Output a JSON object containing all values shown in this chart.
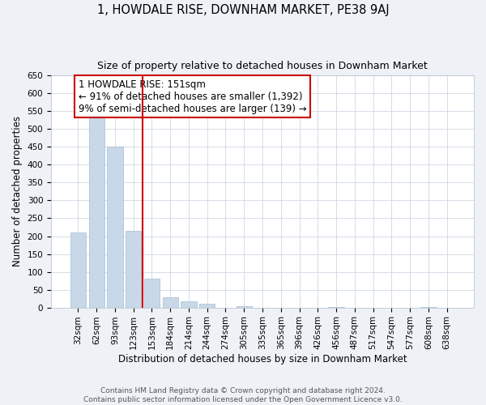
{
  "title": "1, HOWDALE RISE, DOWNHAM MARKET, PE38 9AJ",
  "subtitle": "Size of property relative to detached houses in Downham Market",
  "xlabel": "Distribution of detached houses by size in Downham Market",
  "ylabel": "Number of detached properties",
  "bar_labels": [
    "32sqm",
    "62sqm",
    "93sqm",
    "123sqm",
    "153sqm",
    "184sqm",
    "214sqm",
    "244sqm",
    "274sqm",
    "305sqm",
    "335sqm",
    "365sqm",
    "396sqm",
    "426sqm",
    "456sqm",
    "487sqm",
    "517sqm",
    "547sqm",
    "577sqm",
    "608sqm",
    "638sqm"
  ],
  "bar_values": [
    210,
    535,
    450,
    215,
    80,
    28,
    18,
    10,
    0,
    3,
    0,
    0,
    0,
    0,
    1,
    0,
    0,
    0,
    0,
    1,
    0
  ],
  "bar_color": "#c8d8e8",
  "bar_edge_color": "#a8bcd0",
  "vline_color": "#cc0000",
  "annotation_line1": "1 HOWDALE RISE: 151sqm",
  "annotation_line2": "← 91% of detached houses are smaller (1,392)",
  "annotation_line3": "9% of semi-detached houses are larger (139) →",
  "annotation_box_color": "white",
  "annotation_box_edge": "#cc0000",
  "ylim": [
    0,
    650
  ],
  "yticks": [
    0,
    50,
    100,
    150,
    200,
    250,
    300,
    350,
    400,
    450,
    500,
    550,
    600,
    650
  ],
  "footnote": "Contains HM Land Registry data © Crown copyright and database right 2024.\nContains public sector information licensed under the Open Government Licence v3.0.",
  "bg_color": "#eef2f7",
  "plot_bg_color": "#ffffff",
  "title_fontsize": 10.5,
  "subtitle_fontsize": 9,
  "ylabel_fontsize": 8.5,
  "xlabel_fontsize": 8.5,
  "tick_fontsize": 7.5,
  "annot_fontsize": 8.5,
  "footnote_fontsize": 6.5,
  "grid_color": "#d0d8e4"
}
